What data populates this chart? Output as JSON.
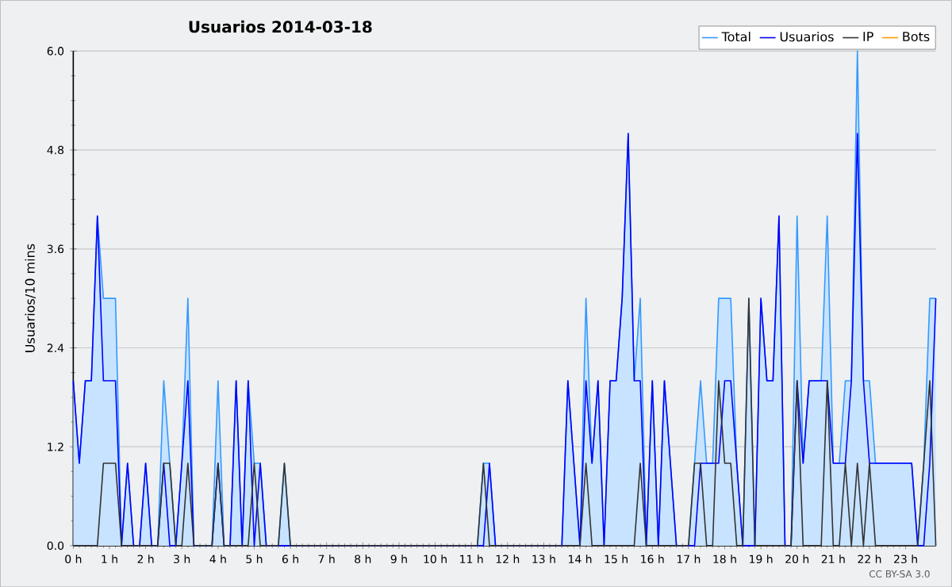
{
  "chart_data": {
    "type": "line",
    "title": "Usuarios  2014-03-18",
    "ylabel": "Usuarios/10 mins",
    "annotations": [
      "CC BY-SA 3.0"
    ],
    "x": [
      0,
      0.1667,
      0.3333,
      0.5,
      0.6667,
      0.8333,
      1,
      1.1667,
      1.3333,
      1.5,
      1.6667,
      1.8333,
      2,
      2.1667,
      2.3333,
      2.5,
      2.6667,
      2.8333,
      3,
      3.1667,
      3.3333,
      3.5,
      3.6667,
      3.8333,
      4,
      4.1667,
      4.3333,
      4.5,
      4.6667,
      4.8333,
      5,
      5.1667,
      5.3333,
      5.5,
      5.6667,
      5.8333,
      6,
      6.1667,
      6.3333,
      6.5,
      6.6667,
      6.8333,
      7,
      7.1667,
      7.3333,
      7.5,
      7.6667,
      7.8333,
      8,
      8.1667,
      8.3333,
      8.5,
      8.6667,
      8.8333,
      9,
      9.1667,
      9.3333,
      9.5,
      9.6667,
      9.8333,
      10,
      10.1667,
      10.3333,
      10.5,
      10.6667,
      10.8333,
      11,
      11.1667,
      11.3333,
      11.5,
      11.6667,
      11.8333,
      12,
      12.1667,
      12.3333,
      12.5,
      12.6667,
      12.8333,
      13,
      13.1667,
      13.3333,
      13.5,
      13.6667,
      13.8333,
      14,
      14.1667,
      14.3333,
      14.5,
      14.6667,
      14.8333,
      15,
      15.1667,
      15.3333,
      15.5,
      15.6667,
      15.8333,
      16,
      16.1667,
      16.3333,
      16.5,
      16.6667,
      16.8333,
      17,
      17.1667,
      17.3333,
      17.5,
      17.6667,
      17.8333,
      18,
      18.1667,
      18.3333,
      18.5,
      18.6667,
      18.8333,
      19,
      19.1667,
      19.3333,
      19.5,
      19.6667,
      19.8333,
      20,
      20.1667,
      20.3333,
      20.5,
      20.6667,
      20.8333,
      21,
      21.1667,
      21.3333,
      21.5,
      21.6667,
      21.8333,
      22,
      22.1667,
      22.3333,
      22.5,
      22.6667,
      22.8333,
      23,
      23.1667,
      23.3333,
      23.5,
      23.6667,
      23.8333
    ],
    "series": [
      {
        "name": "Total",
        "type": "area",
        "color": "#3399ff",
        "values": [
          2,
          1,
          2,
          2,
          4,
          3,
          3,
          3,
          0,
          1,
          0,
          0,
          1,
          0,
          0,
          2,
          1,
          0,
          1,
          3,
          0,
          0,
          0,
          0,
          2,
          0,
          0,
          2,
          0,
          2,
          1,
          1,
          0,
          0,
          0,
          1,
          0,
          0,
          0,
          0,
          0,
          0,
          0,
          0,
          0,
          0,
          0,
          0,
          0,
          0,
          0,
          0,
          0,
          0,
          0,
          0,
          0,
          0,
          0,
          0,
          0,
          0,
          0,
          0,
          0,
          0,
          0,
          0,
          1,
          1,
          0,
          0,
          0,
          0,
          0,
          0,
          0,
          0,
          0,
          0,
          0,
          0,
          2,
          1,
          0,
          3,
          1,
          2,
          0,
          2,
          2,
          3,
          5,
          2,
          3,
          0,
          2,
          0,
          2,
          1,
          0,
          0,
          0,
          1,
          2,
          1,
          1,
          3,
          3,
          3,
          1,
          0,
          3,
          0,
          3,
          2,
          2,
          4,
          0,
          0,
          4,
          1,
          2,
          2,
          2,
          4,
          1,
          1,
          2,
          2,
          6,
          2,
          2,
          1,
          1,
          1,
          1,
          1,
          1,
          1,
          0,
          1,
          3,
          3
        ]
      },
      {
        "name": "Usuarios",
        "color": "#0000ff",
        "values": [
          2,
          1,
          2,
          2,
          4,
          2,
          2,
          2,
          0,
          1,
          0,
          0,
          1,
          0,
          0,
          1,
          0,
          0,
          1,
          2,
          0,
          0,
          0,
          0,
          1,
          0,
          0,
          2,
          0,
          2,
          0,
          1,
          0,
          0,
          0,
          0,
          0,
          0,
          0,
          0,
          0,
          0,
          0,
          0,
          0,
          0,
          0,
          0,
          0,
          0,
          0,
          0,
          0,
          0,
          0,
          0,
          0,
          0,
          0,
          0,
          0,
          0,
          0,
          0,
          0,
          0,
          0,
          0,
          0,
          1,
          0,
          0,
          0,
          0,
          0,
          0,
          0,
          0,
          0,
          0,
          0,
          0,
          2,
          1,
          0,
          2,
          1,
          2,
          0,
          2,
          2,
          3,
          5,
          2,
          2,
          0,
          2,
          0,
          2,
          1,
          0,
          0,
          0,
          0,
          1,
          1,
          1,
          1,
          2,
          2,
          1,
          0,
          0,
          0,
          3,
          2,
          2,
          4,
          0,
          0,
          2,
          1,
          2,
          2,
          2,
          2,
          1,
          1,
          1,
          2,
          5,
          2,
          1,
          1,
          1,
          1,
          1,
          1,
          1,
          1,
          0,
          0,
          1,
          3
        ]
      },
      {
        "name": "IP",
        "color": "#333333",
        "values": [
          0,
          0,
          0,
          0,
          0,
          1,
          1,
          1,
          0,
          0,
          0,
          0,
          0,
          0,
          0,
          1,
          1,
          0,
          0,
          1,
          0,
          0,
          0,
          0,
          1,
          0,
          0,
          0,
          0,
          0,
          1,
          0,
          0,
          0,
          0,
          1,
          0,
          0,
          0,
          0,
          0,
          0,
          0,
          0,
          0,
          0,
          0,
          0,
          0,
          0,
          0,
          0,
          0,
          0,
          0,
          0,
          0,
          0,
          0,
          0,
          0,
          0,
          0,
          0,
          0,
          0,
          0,
          0,
          1,
          0,
          0,
          0,
          0,
          0,
          0,
          0,
          0,
          0,
          0,
          0,
          0,
          0,
          0,
          0,
          0,
          1,
          0,
          0,
          0,
          0,
          0,
          0,
          0,
          0,
          1,
          0,
          0,
          0,
          0,
          0,
          0,
          0,
          0,
          1,
          1,
          0,
          0,
          2,
          1,
          1,
          0,
          0,
          3,
          0,
          0,
          0,
          0,
          0,
          0,
          0,
          2,
          0,
          0,
          0,
          0,
          2,
          0,
          0,
          1,
          0,
          1,
          0,
          1,
          0,
          0,
          0,
          0,
          0,
          0,
          0,
          0,
          1,
          2,
          0
        ]
      },
      {
        "name": "Bots",
        "color": "#ff9900",
        "values": [
          null,
          null,
          null,
          null,
          null,
          null,
          null,
          null,
          null,
          null,
          null,
          null,
          null,
          null,
          null,
          null,
          null,
          null,
          null,
          null,
          null,
          null,
          null,
          null,
          null,
          null,
          null,
          null,
          null,
          null,
          null,
          null,
          null,
          null,
          null,
          null,
          null,
          null,
          null,
          null,
          null,
          null,
          null,
          null,
          null,
          null,
          null,
          null,
          null,
          null,
          null,
          null,
          null,
          null,
          null,
          null,
          null,
          null,
          null,
          null,
          null,
          null,
          null,
          null,
          null,
          null,
          null,
          null,
          null,
          null,
          null,
          null,
          null,
          null,
          null,
          null,
          null,
          null,
          null,
          null,
          null,
          null,
          null,
          null,
          null,
          null,
          null,
          null,
          null,
          null,
          null,
          null,
          null,
          null,
          null,
          null,
          null,
          null,
          null,
          null,
          null,
          null,
          null,
          null,
          null,
          null,
          null,
          null,
          null,
          null,
          null,
          null,
          null,
          null,
          null,
          null,
          null,
          null,
          null,
          null,
          null,
          null,
          null,
          null,
          null,
          null,
          null,
          null,
          null,
          null,
          null,
          null,
          null,
          null,
          null,
          null,
          null,
          null,
          null,
          null,
          null,
          null,
          null,
          null
        ]
      }
    ],
    "xlim": [
      0,
      23.8333
    ],
    "xticks": [
      {
        "value": 0,
        "label": "0 h"
      },
      {
        "value": 1,
        "label": "1 h"
      },
      {
        "value": 2,
        "label": "2 h"
      },
      {
        "value": 3,
        "label": "3 h"
      },
      {
        "value": 4,
        "label": "4 h"
      },
      {
        "value": 5,
        "label": "5 h"
      },
      {
        "value": 6,
        "label": "6 h"
      },
      {
        "value": 7,
        "label": "7 h"
      },
      {
        "value": 8,
        "label": "8 h"
      },
      {
        "value": 9,
        "label": "9 h"
      },
      {
        "value": 10,
        "label": "10 h"
      },
      {
        "value": 11,
        "label": "11 h"
      },
      {
        "value": 12,
        "label": "12 h"
      },
      {
        "value": 13,
        "label": "13 h"
      },
      {
        "value": 14,
        "label": "14 h"
      },
      {
        "value": 15,
        "label": "15 h"
      },
      {
        "value": 16,
        "label": "16 h"
      },
      {
        "value": 17,
        "label": "17 h"
      },
      {
        "value": 18,
        "label": "18 h"
      },
      {
        "value": 19,
        "label": "19 h"
      },
      {
        "value": 20,
        "label": "20 h"
      },
      {
        "value": 21,
        "label": "21 h"
      },
      {
        "value": 22,
        "label": "22 h"
      },
      {
        "value": 23,
        "label": "23 h"
      }
    ],
    "ylim": [
      0,
      6
    ],
    "yticks": [
      {
        "value": 0,
        "label": "0.0"
      },
      {
        "value": 1.2,
        "label": "1.2"
      },
      {
        "value": 2.4,
        "label": "2.4"
      },
      {
        "value": 3.6,
        "label": "3.6"
      },
      {
        "value": 4.8,
        "label": "4.8"
      },
      {
        "value": 6,
        "label": "6.0"
      }
    ],
    "grid": "y",
    "legend": "top right"
  }
}
